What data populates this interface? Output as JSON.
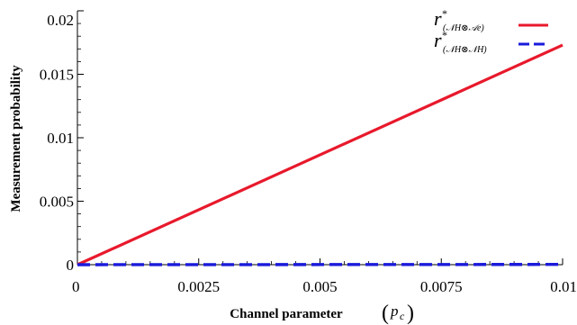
{
  "chart_data": {
    "type": "line",
    "xlabel": "Channel parameter",
    "xlabel_symbol": "p",
    "xlabel_symbol_sub": "c",
    "ylabel": "Measurement probability",
    "xlim": [
      0,
      0.01
    ],
    "ylim": [
      0,
      0.02
    ],
    "x_ticks": [
      0,
      0.0025,
      0.005,
      0.0075,
      0.01
    ],
    "x_tick_labels": [
      "0",
      "0.0025",
      "0.005",
      "0.0075",
      "0.01"
    ],
    "y_ticks": [
      0,
      0.005,
      0.01,
      0.015,
      0.02
    ],
    "y_tick_labels": [
      "0",
      "0.005",
      "0.01",
      "0.015",
      "0.02"
    ],
    "grid": false,
    "legend_position": "top-right",
    "series": [
      {
        "name": "r*_(N_H ⊗ A_e)",
        "legend_r": "r",
        "legend_sup": "*",
        "legend_sub": "(𝒩H⊗𝒜e)",
        "color": "#e8192c",
        "style": "solid",
        "x": [
          0,
          0.01
        ],
        "y": [
          0,
          0.0173
        ]
      },
      {
        "name": "r*_(N_H ⊗ N_H)",
        "legend_r": "r",
        "legend_sup": "*",
        "legend_sub": "(𝒩H⊗𝒩H)",
        "color": "#1a1adb",
        "style": "dashed",
        "x": [
          0,
          0.01
        ],
        "y": [
          0,
          2e-05
        ]
      }
    ]
  }
}
